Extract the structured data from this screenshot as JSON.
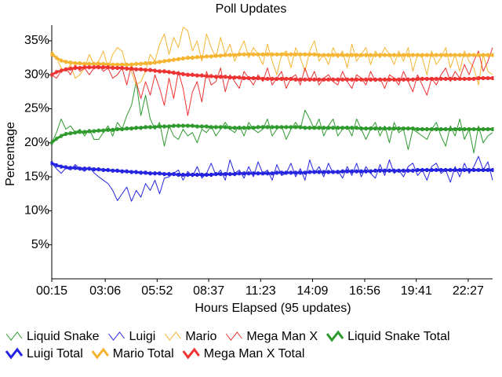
{
  "chart_data": {
    "type": "line",
    "title": "Poll Updates",
    "x_label": "Hours Elapsed (95 updates)",
    "y_label": "Percentage",
    "x": [
      15,
      30,
      45,
      60,
      75,
      90,
      105,
      120,
      135,
      150,
      165,
      180,
      195,
      210,
      225,
      240,
      255,
      270,
      285,
      300,
      315,
      330,
      345,
      360,
      375,
      390,
      405,
      420,
      435,
      450,
      465,
      480,
      495,
      510,
      525,
      540,
      555,
      570,
      585,
      600,
      615,
      630,
      645,
      660,
      675,
      690,
      705,
      720,
      735,
      750,
      765,
      780,
      795,
      810,
      825,
      840,
      855,
      870,
      885,
      900,
      915,
      930,
      945,
      960,
      975,
      990,
      1005,
      1020,
      1035,
      1050,
      1065,
      1080,
      1095,
      1110,
      1125,
      1140,
      1155,
      1170,
      1185,
      1200,
      1215,
      1230,
      1245,
      1260,
      1275,
      1290,
      1305,
      1320,
      1335,
      1350,
      1365,
      1380,
      1395,
      1410,
      1425
    ],
    "xlim": [
      15,
      1425
    ],
    "xticks": [
      {
        "value": 15,
        "label": "00:15"
      },
      {
        "value": 186,
        "label": "03:06"
      },
      {
        "value": 352,
        "label": "05:52"
      },
      {
        "value": 517,
        "label": "08:37"
      },
      {
        "value": 683,
        "label": "11:23"
      },
      {
        "value": 849,
        "label": "14:09"
      },
      {
        "value": 1016,
        "label": "16:56"
      },
      {
        "value": 1181,
        "label": "19:41"
      },
      {
        "value": 1347,
        "label": "22:27"
      }
    ],
    "ylim": [
      0,
      37.3
    ],
    "yticks": [
      {
        "value": 5,
        "label": "5%"
      },
      {
        "value": 10,
        "label": "10%"
      },
      {
        "value": 15,
        "label": "15%"
      },
      {
        "value": 20,
        "label": "20%"
      },
      {
        "value": 25,
        "label": "25%"
      },
      {
        "value": 30,
        "label": "30%"
      },
      {
        "value": 35,
        "label": "35%"
      }
    ],
    "grid": false,
    "series": [
      {
        "name": "Liquid Snake",
        "color": "#2e9a2e",
        "line_width": 1,
        "markers": false,
        "values": [
          20.0,
          21.5,
          23.5,
          22.0,
          22.5,
          21.5,
          22.0,
          21.0,
          22.0,
          20.5,
          20.5,
          21.5,
          22.5,
          21.0,
          23.0,
          22.0,
          24.0,
          25.5,
          29.0,
          24.0,
          27.0,
          23.5,
          22.0,
          23.0,
          19.5,
          22.5,
          21.0,
          20.5,
          22.0,
          21.0,
          21.5,
          20.0,
          22.0,
          21.5,
          22.5,
          21.0,
          22.0,
          23.0,
          22.0,
          21.5,
          22.5,
          21.0,
          23.0,
          22.0,
          21.5,
          22.0,
          23.5,
          21.0,
          22.0,
          22.5,
          20.5,
          22.0,
          23.0,
          22.0,
          24.8,
          23.5,
          22.0,
          23.5,
          21.0,
          22.5,
          23.5,
          21.0,
          22.0,
          22.5,
          21.0,
          23.5,
          22.0,
          20.5,
          22.0,
          23.0,
          21.0,
          22.5,
          20.0,
          23.0,
          21.5,
          22.0,
          19.0,
          22.0,
          21.5,
          21.0,
          20.5,
          22.0,
          23.0,
          21.0,
          19.5,
          22.5,
          21.0,
          23.5,
          20.5,
          22.0,
          18.5,
          22.5,
          20.0,
          21.0,
          21.5
        ]
      },
      {
        "name": "Luigi",
        "color": "#2424e0",
        "line_width": 1,
        "markers": false,
        "values": [
          17.0,
          16.2,
          15.5,
          16.3,
          16.0,
          16.8,
          16.2,
          15.8,
          16.4,
          15.6,
          15.0,
          14.5,
          14.0,
          13.0,
          11.5,
          12.5,
          13.5,
          11.4,
          13.0,
          12.0,
          14.0,
          13.0,
          14.5,
          12.5,
          14.8,
          15.0,
          15.5,
          16.0,
          14.5,
          15.8,
          15.0,
          16.5,
          14.8,
          15.5,
          17.0,
          15.2,
          16.0,
          14.5,
          17.5,
          15.5,
          16.0,
          14.8,
          16.5,
          15.0,
          17.2,
          15.5,
          16.0,
          14.5,
          16.8,
          15.2,
          15.5,
          17.0,
          15.0,
          16.2,
          14.5,
          17.5,
          15.5,
          16.5,
          15.0,
          17.0,
          15.5,
          16.0,
          14.8,
          16.5,
          15.2,
          17.0,
          15.0,
          16.5,
          15.5,
          14.8,
          16.8,
          15.2,
          17.5,
          15.5,
          16.0,
          15.0,
          16.5,
          17.0,
          15.2,
          16.0,
          14.5,
          16.5,
          17.0,
          15.5,
          16.0,
          14.2,
          16.5,
          15.0,
          17.0,
          15.5,
          16.5,
          18.0,
          16.0,
          17.2,
          14.5
        ]
      },
      {
        "name": "Mario",
        "color": "#f5b532",
        "line_width": 1,
        "markers": false,
        "values": [
          33.5,
          32.5,
          31.0,
          30.5,
          31.5,
          29.5,
          30.0,
          31.0,
          33.0,
          31.5,
          32.0,
          33.5,
          31.0,
          33.0,
          34.0,
          33.5,
          31.0,
          30.5,
          28.5,
          29.0,
          30.5,
          33.0,
          32.0,
          34.5,
          36.0,
          33.0,
          35.5,
          34.0,
          37.0,
          36.5,
          33.5,
          35.0,
          32.0,
          36.0,
          34.0,
          32.5,
          35.5,
          33.0,
          34.5,
          32.0,
          33.5,
          35.0,
          32.5,
          34.0,
          33.0,
          31.5,
          34.5,
          32.0,
          30.0,
          33.0,
          33.5,
          31.0,
          34.0,
          32.5,
          30.5,
          33.5,
          35.0,
          32.0,
          33.0,
          31.5,
          34.0,
          32.5,
          33.5,
          31.0,
          34.5,
          32.0,
          33.0,
          34.0,
          31.5,
          33.5,
          32.5,
          34.0,
          33.0,
          31.5,
          33.5,
          32.0,
          34.0,
          30.5,
          33.0,
          32.5,
          30.0,
          33.5,
          31.5,
          32.5,
          34.0,
          31.0,
          33.0,
          30.5,
          33.5,
          32.0,
          31.0,
          28.5,
          33.0,
          30.5,
          30.0
        ]
      },
      {
        "name": "Mega Man X",
        "color": "#ee3333",
        "line_width": 1,
        "markers": false,
        "values": [
          30.0,
          29.5,
          30.5,
          31.0,
          30.0,
          31.5,
          30.5,
          31.0,
          30.0,
          31.0,
          31.5,
          30.5,
          31.0,
          29.5,
          30.0,
          31.0,
          28.5,
          31.5,
          29.0,
          26.5,
          29.0,
          27.0,
          30.0,
          28.0,
          25.5,
          29.5,
          26.5,
          30.5,
          28.0,
          24.0,
          27.5,
          29.0,
          26.0,
          30.5,
          28.5,
          29.0,
          31.0,
          27.5,
          30.0,
          29.0,
          28.0,
          30.5,
          29.5,
          28.5,
          30.0,
          29.0,
          31.0,
          28.5,
          29.5,
          30.5,
          28.0,
          29.5,
          30.0,
          28.5,
          31.0,
          29.0,
          30.5,
          28.5,
          29.5,
          30.0,
          29.0,
          28.5,
          30.5,
          29.0,
          28.0,
          30.0,
          29.5,
          28.5,
          30.5,
          29.0,
          29.5,
          28.0,
          30.0,
          29.5,
          28.5,
          30.5,
          29.0,
          27.5,
          30.0,
          28.5,
          27.0,
          29.5,
          28.5,
          30.0,
          31.0,
          29.0,
          30.5,
          29.5,
          31.5,
          30.0,
          32.0,
          33.5,
          30.5,
          32.0,
          34.0
        ]
      },
      {
        "name": "Liquid Snake Total",
        "color": "#2e9a2e",
        "line_width": 3,
        "markers": true,
        "values": [
          20.0,
          20.6,
          21.0,
          21.3,
          21.4,
          21.5,
          21.6,
          21.6,
          21.7,
          21.7,
          21.8,
          21.8,
          21.9,
          21.9,
          22.0,
          22.0,
          22.1,
          22.1,
          22.2,
          22.2,
          22.3,
          22.3,
          22.3,
          22.4,
          22.4,
          22.4,
          22.5,
          22.5,
          22.5,
          22.5,
          22.5,
          22.4,
          22.4,
          22.4,
          22.3,
          22.3,
          22.3,
          22.3,
          22.2,
          22.2,
          22.2,
          22.2,
          22.2,
          22.2,
          22.3,
          22.3,
          22.3,
          22.3,
          22.3,
          22.3,
          22.3,
          22.3,
          22.3,
          22.3,
          22.2,
          22.2,
          22.2,
          22.2,
          22.2,
          22.2,
          22.2,
          22.2,
          22.2,
          22.2,
          22.2,
          22.2,
          22.1,
          22.1,
          22.1,
          22.1,
          22.1,
          22.1,
          22.1,
          22.1,
          22.1,
          22.1,
          22.1,
          22.1,
          22.0,
          22.0,
          22.0,
          22.0,
          22.0,
          22.0,
          22.0,
          22.0,
          22.0,
          22.0,
          22.0,
          22.0,
          22.0,
          22.0,
          22.0,
          22.0,
          22.0
        ]
      },
      {
        "name": "Luigi Total",
        "color": "#2424e0",
        "line_width": 3,
        "markers": true,
        "values": [
          17.0,
          16.7,
          16.5,
          16.4,
          16.3,
          16.3,
          16.2,
          16.2,
          16.2,
          16.1,
          16.1,
          16.0,
          16.0,
          15.9,
          15.9,
          15.8,
          15.8,
          15.7,
          15.7,
          15.6,
          15.6,
          15.5,
          15.5,
          15.5,
          15.4,
          15.4,
          15.4,
          15.3,
          15.3,
          15.3,
          15.3,
          15.3,
          15.3,
          15.3,
          15.3,
          15.4,
          15.4,
          15.4,
          15.4,
          15.4,
          15.5,
          15.5,
          15.5,
          15.5,
          15.5,
          15.5,
          15.5,
          15.5,
          15.6,
          15.6,
          15.6,
          15.6,
          15.6,
          15.6,
          15.6,
          15.7,
          15.7,
          15.7,
          15.7,
          15.7,
          15.7,
          15.7,
          15.8,
          15.8,
          15.8,
          15.8,
          15.8,
          15.8,
          15.8,
          15.9,
          15.9,
          15.9,
          15.9,
          15.9,
          15.9,
          15.9,
          15.9,
          15.9,
          16.0,
          16.0,
          16.0,
          16.0,
          16.0,
          16.0,
          16.0,
          16.0,
          16.0,
          16.0,
          16.0,
          16.0,
          16.0,
          16.0,
          16.0,
          16.0,
          16.0
        ]
      },
      {
        "name": "Mario Total",
        "color": "#f5b532",
        "line_width": 3,
        "markers": true,
        "values": [
          33.0,
          32.5,
          32.1,
          31.9,
          31.8,
          31.7,
          31.7,
          31.6,
          31.6,
          31.6,
          31.6,
          31.6,
          31.5,
          31.5,
          31.5,
          31.5,
          31.5,
          31.5,
          31.6,
          31.6,
          31.7,
          31.7,
          31.8,
          31.9,
          32.0,
          32.1,
          32.2,
          32.3,
          32.4,
          32.5,
          32.5,
          32.6,
          32.6,
          32.7,
          32.7,
          32.8,
          32.8,
          32.9,
          32.9,
          32.9,
          33.0,
          33.0,
          33.0,
          33.0,
          33.0,
          33.0,
          33.0,
          33.0,
          33.0,
          33.0,
          33.0,
          33.0,
          33.0,
          33.0,
          33.0,
          33.0,
          33.0,
          32.9,
          32.9,
          32.9,
          32.9,
          32.9,
          32.9,
          32.9,
          32.9,
          32.9,
          32.9,
          32.9,
          32.9,
          32.9,
          32.9,
          32.9,
          32.9,
          32.9,
          32.9,
          32.9,
          32.9,
          32.9,
          32.9,
          32.9,
          32.9,
          32.9,
          32.9,
          32.9,
          32.9,
          32.9,
          32.9,
          32.9,
          32.9,
          32.9,
          32.9,
          32.9,
          32.9,
          32.9,
          32.9
        ]
      },
      {
        "name": "Mega Man X Total",
        "color": "#ee3333",
        "line_width": 3,
        "markers": true,
        "values": [
          30.0,
          30.4,
          30.6,
          30.8,
          30.9,
          31.0,
          31.0,
          31.1,
          31.1,
          31.1,
          31.1,
          31.1,
          31.1,
          31.0,
          31.0,
          31.0,
          30.9,
          30.9,
          30.8,
          30.8,
          30.7,
          30.7,
          30.6,
          30.5,
          30.5,
          30.4,
          30.3,
          30.2,
          30.1,
          30.0,
          30.0,
          29.9,
          29.9,
          29.8,
          29.8,
          29.7,
          29.7,
          29.7,
          29.6,
          29.6,
          29.6,
          29.5,
          29.5,
          29.5,
          29.5,
          29.4,
          29.4,
          29.4,
          29.4,
          29.4,
          29.4,
          29.4,
          29.3,
          29.3,
          29.3,
          29.3,
          29.3,
          29.3,
          29.3,
          29.3,
          29.3,
          29.3,
          29.3,
          29.3,
          29.3,
          29.3,
          29.3,
          29.3,
          29.3,
          29.3,
          29.3,
          29.3,
          29.3,
          29.3,
          29.3,
          29.3,
          29.3,
          29.3,
          29.4,
          29.4,
          29.4,
          29.4,
          29.4,
          29.4,
          29.4,
          29.4,
          29.4,
          29.4,
          29.4,
          29.4,
          29.4,
          29.5,
          29.5,
          29.5,
          29.5
        ]
      }
    ]
  }
}
